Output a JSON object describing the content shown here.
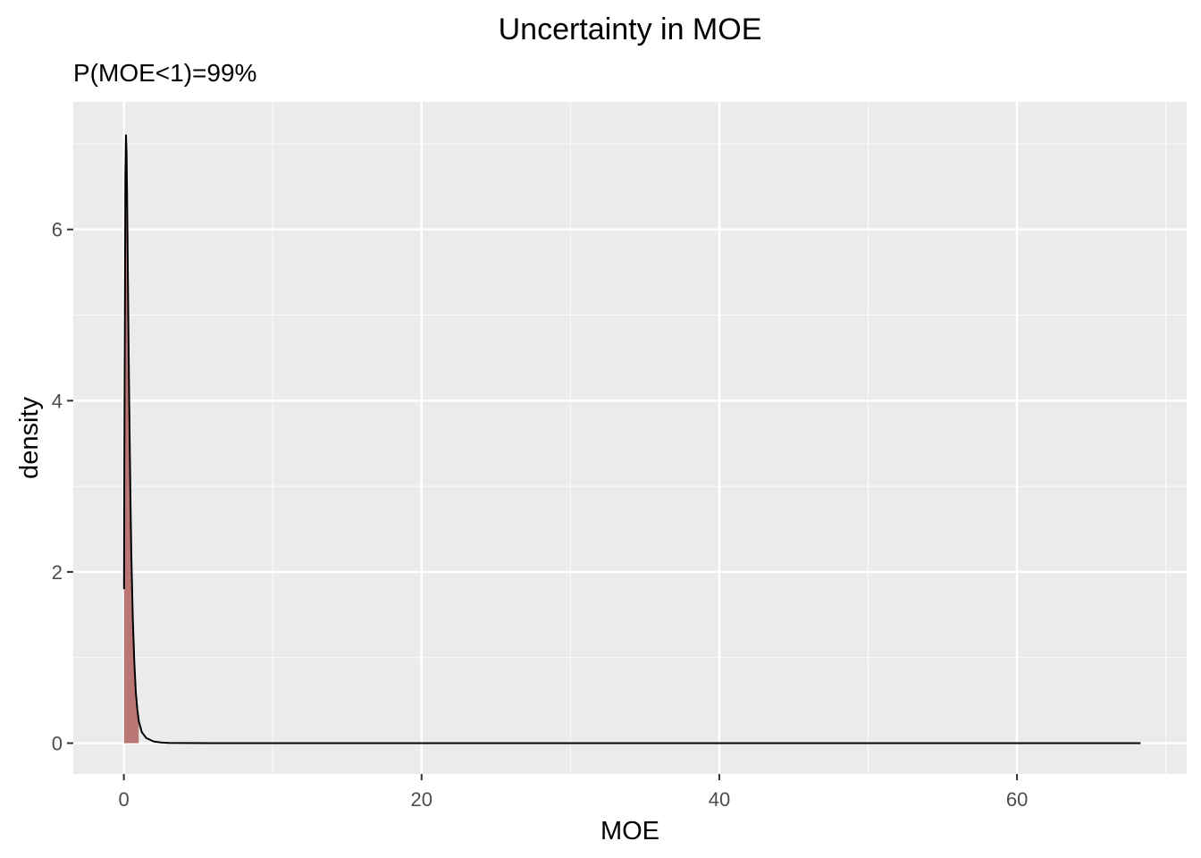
{
  "chart_data": {
    "type": "area",
    "title": "Uncertainty in MOE",
    "subtitle": "P(MOE<1)=99%",
    "xlabel": "MOE",
    "ylabel": "density",
    "xlim": [
      -3.4,
      71.4
    ],
    "ylim": [
      -0.36,
      7.49
    ],
    "x_ticks": [
      0,
      20,
      40,
      60
    ],
    "x_minor_ticks": [
      10,
      30,
      50,
      70
    ],
    "y_ticks": [
      0,
      2,
      4,
      6
    ],
    "y_minor_ticks": [
      1,
      3,
      5,
      7
    ],
    "grid": true,
    "legend": "none",
    "shaded_region": {
      "from": 0,
      "to": 1,
      "color": "#b97675",
      "label": "MOE<1"
    },
    "density_curve": {
      "x": [
        0.01,
        0.03,
        0.06,
        0.1,
        0.14,
        0.18,
        0.22,
        0.26,
        0.3,
        0.35,
        0.4,
        0.45,
        0.5,
        0.6,
        0.7,
        0.8,
        0.9,
        1.0,
        1.2,
        1.5,
        2.0,
        2.5,
        3.0,
        4.0,
        6.0,
        10.0,
        20.0,
        30.0,
        40.0,
        50.0,
        60.0,
        68.3
      ],
      "y": [
        1.8,
        3.3,
        4.7,
        6.6,
        7.1,
        6.9,
        6.3,
        5.6,
        4.9,
        4.1,
        3.4,
        2.75,
        2.2,
        1.45,
        0.95,
        0.6,
        0.4,
        0.26,
        0.13,
        0.06,
        0.02,
        0.008,
        0.003,
        0.001,
        0.0,
        0.0,
        0.0,
        0.0,
        0.0,
        0.0,
        0.0,
        0.0
      ]
    },
    "colors": {
      "panel_background": "#ebebeb",
      "grid_major": "#ffffff",
      "fill": "#b97675",
      "line": "#000000"
    }
  }
}
